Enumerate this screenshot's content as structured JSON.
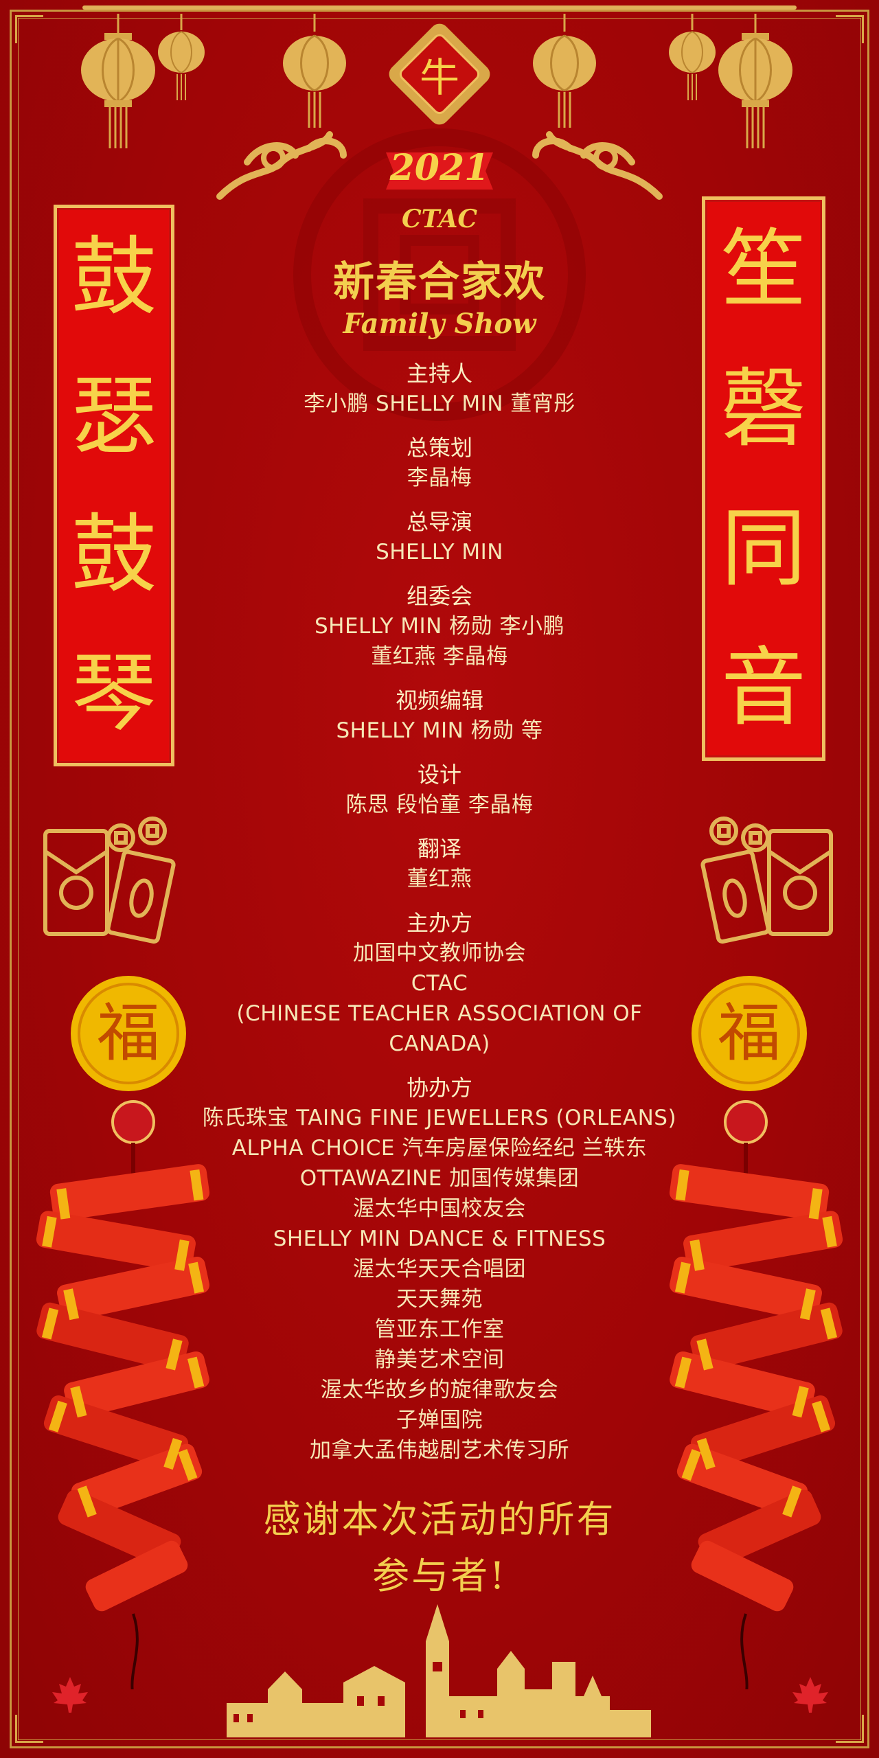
{
  "ox_emblem": "牛",
  "year": "2021",
  "event": {
    "org": "CTAC",
    "title_cn": "新春合家欢",
    "title_en": "Family Show"
  },
  "couplets": {
    "left": [
      "鼓",
      "瑟",
      "鼓",
      "琴"
    ],
    "right": [
      "笙",
      "磬",
      "同",
      "音"
    ]
  },
  "credits": {
    "hosts": {
      "title": "主持人",
      "lines": [
        "李小鹏 SHELLY MIN 董宵彤"
      ]
    },
    "planner": {
      "title": "总策划",
      "lines": [
        "李晶梅"
      ]
    },
    "director": {
      "title": "总导演",
      "lines": [
        "SHELLY MIN"
      ]
    },
    "committee": {
      "title": "组委会",
      "lines": [
        "SHELLY MIN 杨勋 李小鹏",
        "董红燕 李晶梅"
      ]
    },
    "video": {
      "title": "视频编辑",
      "lines": [
        "SHELLY MIN 杨勋 等"
      ]
    },
    "design": {
      "title": "设计",
      "lines": [
        "陈思 段怡童 李晶梅"
      ]
    },
    "translation": {
      "title": "翻译",
      "lines": [
        "董红燕"
      ]
    },
    "host_org": {
      "title": "主办方",
      "lines": [
        "加国中文教师协会",
        "CTAC",
        "(CHINESE TEACHER ASSOCIATION OF CANADA)"
      ]
    },
    "co_org": {
      "title": "协办方",
      "lines": [
        "陈氏珠宝 TAING FINE JEWELLERS (ORLEANS)",
        "ALPHA CHOICE 汽车房屋保险经纪 兰轶东",
        "OTTAWAZINE 加国传媒集团",
        "渥太华中国校友会",
        "SHELLY MIN DANCE & FITNESS",
        "渥太华天天合唱团",
        "天天舞苑",
        "管亚东工作室",
        "静美艺术空间",
        "渥太华故乡的旋律歌友会",
        "子婵国院",
        "加拿大孟伟越剧艺术传习所"
      ]
    }
  },
  "thanks": [
    "感谢本次活动的所有",
    "参与者!"
  ],
  "colors": {
    "background": "#a50607",
    "gold": "#f3cf4f",
    "text": "#f6e7b6",
    "couplet": "#e10a0a"
  },
  "icons": [
    "lantern-icon",
    "cloud-icon",
    "red-envelope-icon",
    "fu-coin-icon",
    "firecracker-icon",
    "maple-leaf-icon",
    "city-skyline-icon"
  ]
}
